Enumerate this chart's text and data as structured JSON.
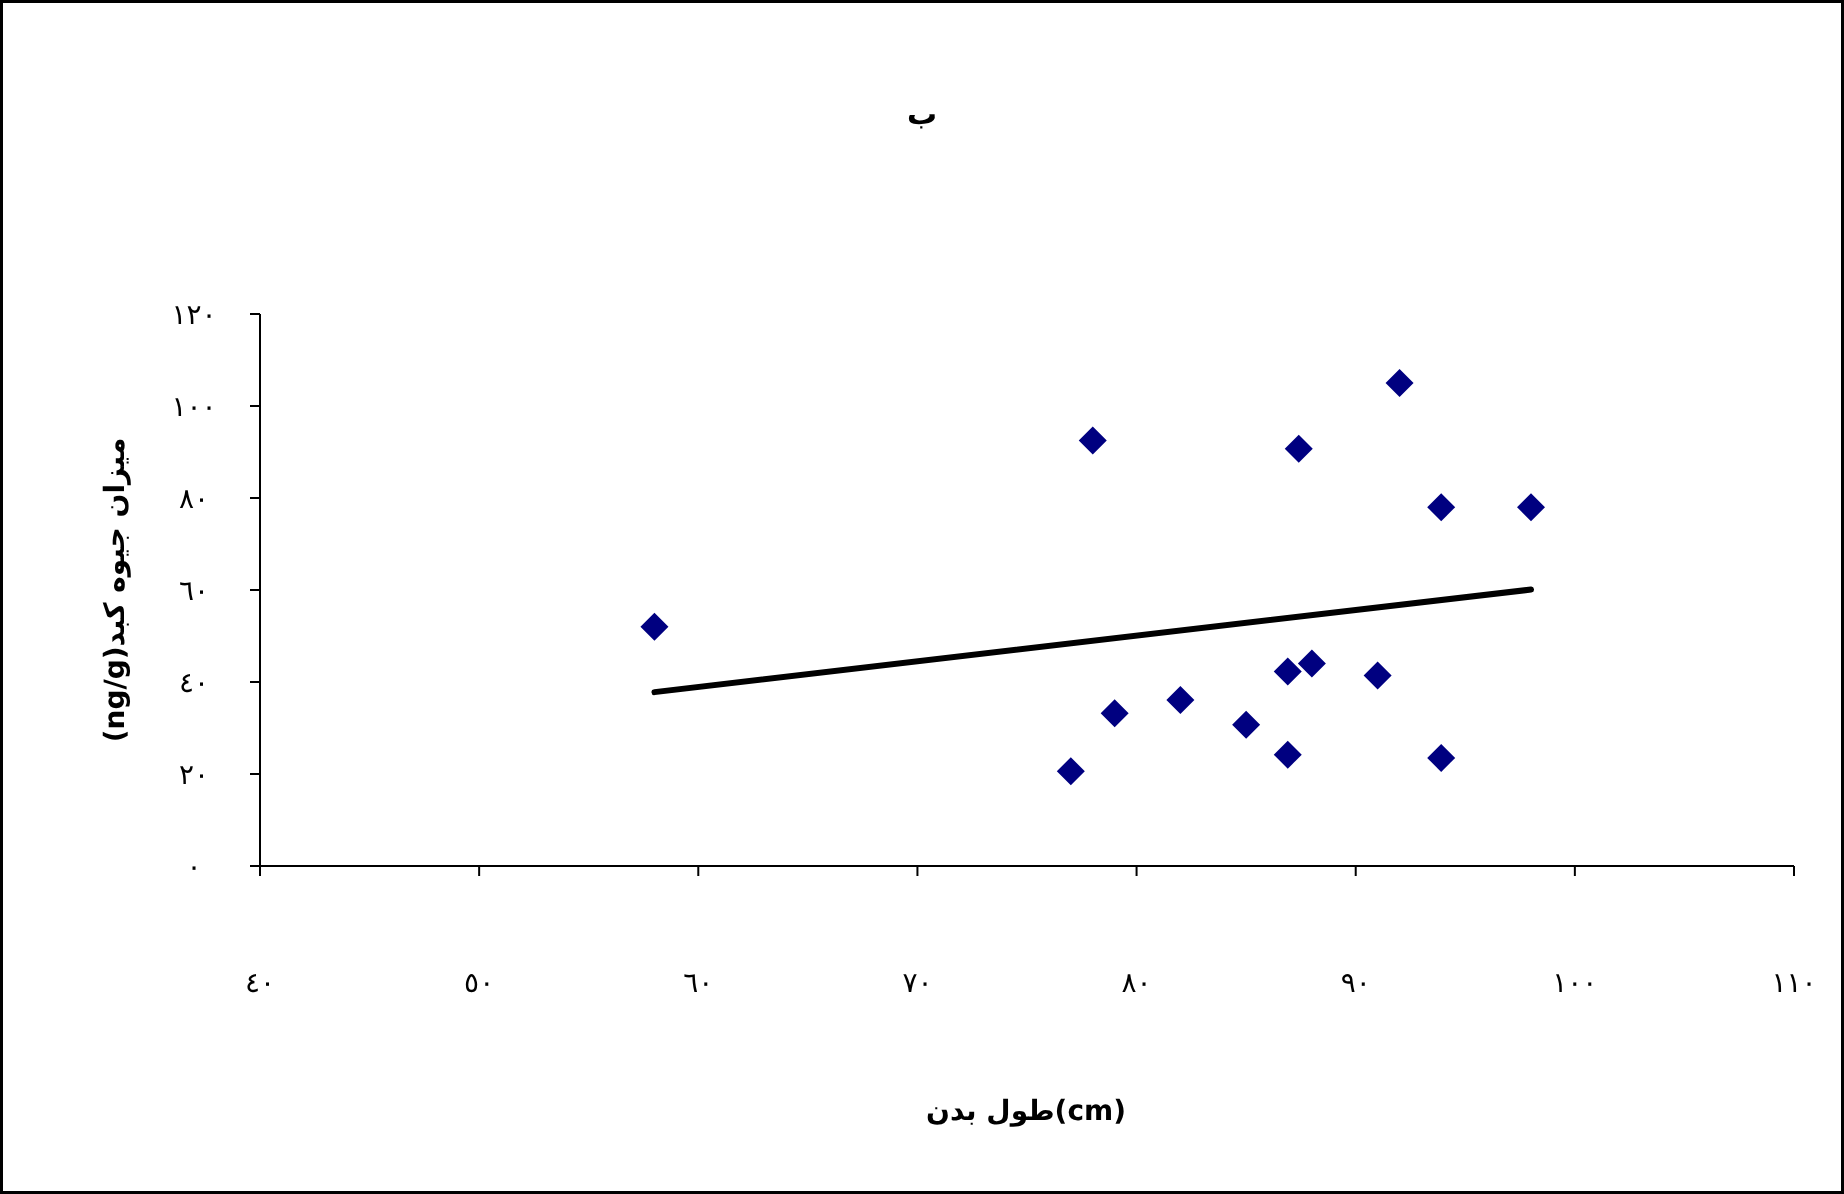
{
  "chart_data": {
    "type": "scatter",
    "title": "ب",
    "xlabel": "طول بدن(cm)",
    "ylabel": "میزان جیوه کبد(ng/g)",
    "xlim": [
      40,
      110
    ],
    "ylim": [
      0,
      120
    ],
    "xticks": [
      {
        "value": 40,
        "label": "٤٠"
      },
      {
        "value": 50,
        "label": "٥٠"
      },
      {
        "value": 60,
        "label": "٦٠"
      },
      {
        "value": 70,
        "label": "٧٠"
      },
      {
        "value": 80,
        "label": "٨٠"
      },
      {
        "value": 90,
        "label": "٩٠"
      },
      {
        "value": 100,
        "label": "١٠٠"
      },
      {
        "value": 110,
        "label": "١١٠"
      }
    ],
    "yticks": [
      {
        "value": 0,
        "label": "٠"
      },
      {
        "value": 20,
        "label": "٢٠"
      },
      {
        "value": 40,
        "label": "٤٠"
      },
      {
        "value": 60,
        "label": "٦٠"
      },
      {
        "value": 80,
        "label": "٨٠"
      },
      {
        "value": 100,
        "label": "١٠٠"
      },
      {
        "value": 120,
        "label": "١٢٠"
      }
    ],
    "grid": false,
    "marker": "diamond",
    "series": [
      {
        "type": "scatter",
        "color": "#000080",
        "x": [
          58,
          78,
          87.4,
          92,
          93.9,
          98,
          77,
          79,
          82,
          85,
          86.9,
          88,
          86.9,
          91,
          93.9
        ],
        "values": [
          52,
          92.5,
          90.7,
          105,
          78,
          78,
          20.6,
          33.2,
          36.1,
          30.7,
          42.3,
          44,
          24.2,
          41.4,
          23.5
        ]
      },
      {
        "type": "line",
        "color": "#000000",
        "marker": "none",
        "line_style": "solid",
        "x": [
          58,
          98
        ],
        "values": [
          37.8,
          60.1
        ]
      }
    ]
  }
}
